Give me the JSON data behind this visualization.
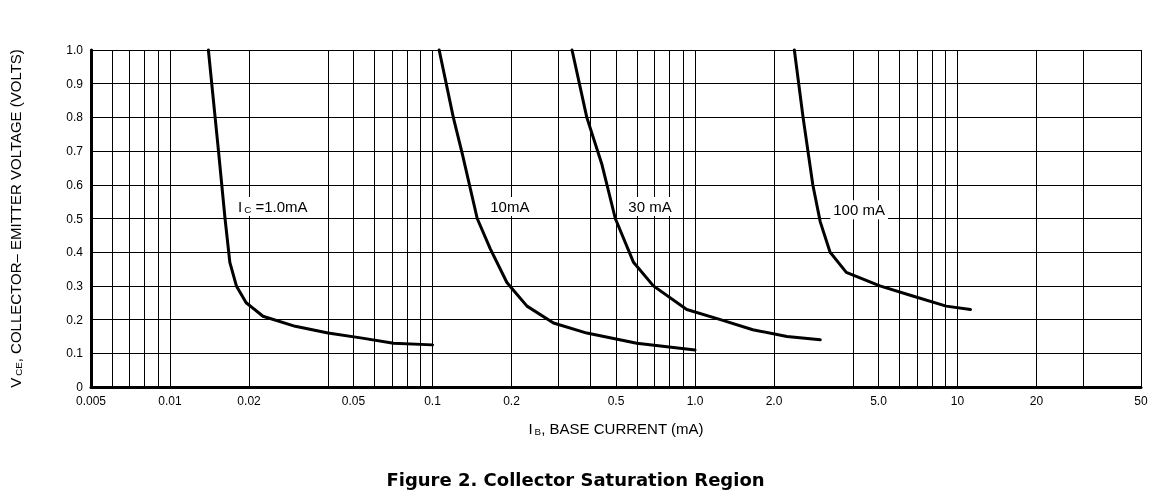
{
  "chart_data": {
    "type": "line",
    "title": "Figure 2. Collector Saturation Region",
    "xlabel": "I$_{B}$, BASE CURRENT (mA)",
    "ylabel": "V$_{CE}$, COLLECTOR– EMITTER VOLTAGE (VOLTS)",
    "log": "x",
    "grid": true,
    "marker": "none",
    "line_style": "solid",
    "xlim": [
      0.005,
      50
    ],
    "ylim": [
      0,
      1
    ],
    "xticks": [
      {
        "value": 0.005,
        "label": "0.005"
      },
      {
        "value": 0.006,
        "label": null
      },
      {
        "value": 0.007,
        "label": null
      },
      {
        "value": 0.008,
        "label": null
      },
      {
        "value": 0.009,
        "label": null
      },
      {
        "value": 0.01,
        "label": "0.01"
      },
      {
        "value": 0.02,
        "label": "0.02"
      },
      {
        "value": 0.04,
        "label": null
      },
      {
        "value": 0.05,
        "label": "0.05"
      },
      {
        "value": 0.06,
        "label": null
      },
      {
        "value": 0.07,
        "label": null
      },
      {
        "value": 0.08,
        "label": null
      },
      {
        "value": 0.09,
        "label": null
      },
      {
        "value": 0.1,
        "label": "0.1"
      },
      {
        "value": 0.2,
        "label": "0.2"
      },
      {
        "value": 0.3,
        "label": null
      },
      {
        "value": 0.4,
        "label": null
      },
      {
        "value": 0.5,
        "label": "0.5"
      },
      {
        "value": 0.6,
        "label": null
      },
      {
        "value": 0.7,
        "label": null
      },
      {
        "value": 0.8,
        "label": null
      },
      {
        "value": 0.9,
        "label": null
      },
      {
        "value": 1,
        "label": "1.0"
      },
      {
        "value": 2,
        "label": "2.0"
      },
      {
        "value": 4,
        "label": null
      },
      {
        "value": 5,
        "label": "5.0"
      },
      {
        "value": 6,
        "label": null
      },
      {
        "value": 7,
        "label": null
      },
      {
        "value": 8,
        "label": null
      },
      {
        "value": 9,
        "label": null
      },
      {
        "value": 10,
        "label": "10"
      },
      {
        "value": 20,
        "label": "20"
      },
      {
        "value": 30,
        "label": null
      },
      {
        "value": 50,
        "label": "50"
      }
    ],
    "yticks": [
      0,
      {
        "value": 0.1,
        "label": "0.1"
      },
      {
        "value": 0.2,
        "label": "0.2"
      },
      {
        "value": 0.3,
        "label": "0.3"
      },
      {
        "value": 0.4,
        "label": "0.4"
      },
      {
        "value": 0.5,
        "label": "0.5"
      },
      {
        "value": 0.6,
        "label": "0.6"
      },
      {
        "value": 0.7,
        "label": "0.7"
      },
      {
        "value": 0.8,
        "label": "0.8"
      },
      {
        "value": 0.9,
        "label": "0.9"
      },
      {
        "value": 1,
        "label": "1.0"
      }
    ],
    "series": [
      {
        "name": "I$_{C}$ =1.0mA",
        "color": "#000000",
        "x": [
          0.014,
          0.0153,
          0.0162,
          0.0169,
          0.0179,
          0.0195,
          0.0226,
          0.03,
          0.04,
          0.054,
          0.071,
          0.1
        ],
        "values": [
          1.0,
          0.7,
          0.5,
          0.37,
          0.3,
          0.25,
          0.21,
          0.18,
          0.16,
          0.145,
          0.13,
          0.125
        ]
      },
      {
        "name": "10mA",
        "color": "#000000",
        "x": [
          0.106,
          0.12,
          0.13,
          0.148,
          0.166,
          0.192,
          0.229,
          0.289,
          0.387,
          0.6,
          1.0
        ],
        "values": [
          1.0,
          0.8,
          0.69,
          0.5,
          0.41,
          0.31,
          0.24,
          0.19,
          0.16,
          0.13,
          0.11
        ]
      },
      {
        "name": "30 mA",
        "color": "#000000",
        "x": [
          0.34,
          0.387,
          0.442,
          0.497,
          0.583,
          0.694,
          0.93,
          1.25,
          1.66,
          2.24,
          3.0
        ],
        "values": [
          1.0,
          0.8,
          0.66,
          0.5,
          0.37,
          0.3,
          0.23,
          0.2,
          0.17,
          0.15,
          0.14
        ]
      },
      {
        "name": "100 mA",
        "color": "#000000",
        "x": [
          2.39,
          2.58,
          2.81,
          3.0,
          3.27,
          3.77,
          5.06,
          6.75,
          9.05,
          11.2
        ],
        "values": [
          1.0,
          0.8,
          0.6,
          0.49,
          0.4,
          0.34,
          0.3,
          0.27,
          0.24,
          0.23
        ]
      }
    ]
  }
}
